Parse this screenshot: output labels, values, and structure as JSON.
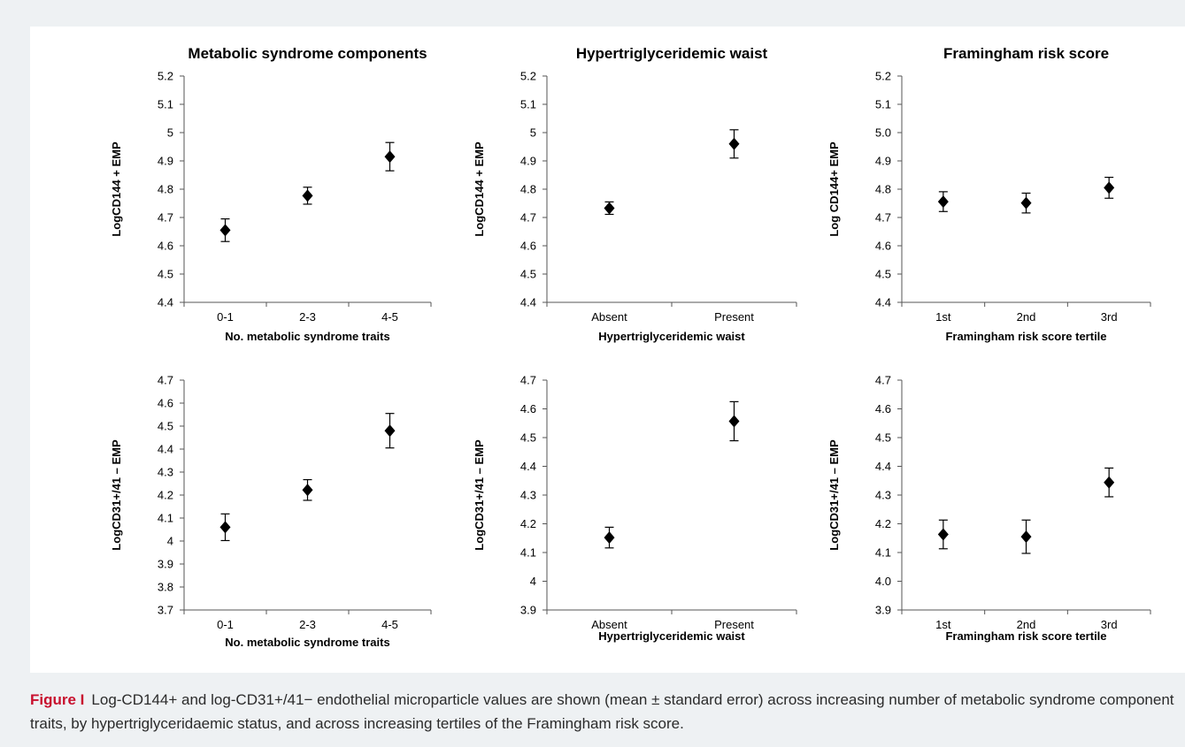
{
  "chart_data": [
    {
      "type": "scatter",
      "title": "Metabolic syndrome components",
      "xlabel": "No. metabolic syndrome traits",
      "ylabel": "LogCD144 + EMP",
      "categories": [
        "0-1",
        "2-3",
        "4-5"
      ],
      "values": [
        4.655,
        4.777,
        4.915
      ],
      "error": [
        0.04,
        0.03,
        0.05
      ],
      "ylim": [
        4.4,
        5.2
      ],
      "yticks": [
        "4.4",
        "4.5",
        "4.6",
        "4.7",
        "4.8",
        "4.9",
        "5",
        "5.1",
        "5.2"
      ],
      "grid": false
    },
    {
      "type": "scatter",
      "title": "Hypertriglyceridemic waist",
      "xlabel": "Hypertriglyceridemic waist",
      "ylabel": "LogCD144 + EMP",
      "categories": [
        "Absent",
        "Present"
      ],
      "values": [
        4.733,
        4.96
      ],
      "error": [
        0.022,
        0.05
      ],
      "ylim": [
        4.4,
        5.2
      ],
      "yticks": [
        "4.4",
        "4.5",
        "4.6",
        "4.7",
        "4.8",
        "4.9",
        "5",
        "5.1",
        "5.2"
      ],
      "grid": false
    },
    {
      "type": "scatter",
      "title": "Framingham risk score",
      "xlabel": "Framingham risk score tertile",
      "ylabel": "Log CD144+ EMP",
      "categories": [
        "1st",
        "2nd",
        "3rd"
      ],
      "values": [
        4.756,
        4.751,
        4.805
      ],
      "error": [
        0.035,
        0.035,
        0.037
      ],
      "ylim": [
        4.4,
        5.2
      ],
      "yticks": [
        "4.4",
        "4.5",
        "4.6",
        "4.7",
        "4.8",
        "4.9",
        "5.0",
        "5.1",
        "5.2"
      ],
      "grid": false
    },
    {
      "type": "scatter",
      "title": "",
      "xlabel": "No. metabolic syndrome traits",
      "ylabel": "LogCD31+/41 – EMP",
      "categories": [
        "0-1",
        "2-3",
        "4-5"
      ],
      "values": [
        4.06,
        4.222,
        4.48
      ],
      "error": [
        0.058,
        0.045,
        0.075
      ],
      "ylim": [
        3.7,
        4.7
      ],
      "yticks": [
        "3.7",
        "3.8",
        "3.9",
        "4",
        "4.1",
        "4.2",
        "4.3",
        "4.4",
        "4.5",
        "4.6",
        "4.7"
      ],
      "grid": false
    },
    {
      "type": "scatter",
      "title": "",
      "xlabel": "Hypertriglyceridemic waist",
      "ylabel": "LogCD31+/41 – EMP",
      "categories": [
        "Absent",
        "Present"
      ],
      "values": [
        4.152,
        4.557
      ],
      "error": [
        0.036,
        0.068
      ],
      "ylim": [
        3.9,
        4.7
      ],
      "yticks": [
        "3.9",
        "4",
        "4.1",
        "4.2",
        "4.3",
        "4.4",
        "4.5",
        "4.6",
        "4.7"
      ],
      "grid": false
    },
    {
      "type": "scatter",
      "title": "",
      "xlabel": "Framingham risk score tertile",
      "ylabel": "LogCD31+/41 – EMP",
      "categories": [
        "1st",
        "2nd",
        "3rd"
      ],
      "values": [
        4.163,
        4.155,
        4.344
      ],
      "error": [
        0.05,
        0.058,
        0.05
      ],
      "ylim": [
        3.9,
        4.7
      ],
      "yticks": [
        "3.9",
        "4.0",
        "4.1",
        "4.2",
        "4.3",
        "4.4",
        "4.5",
        "4.6",
        "4.7"
      ],
      "grid": false
    }
  ],
  "caption": {
    "label": "Figure I",
    "text": "Log-CD144+ and log-CD31+/41− endothelial microparticle values are shown (mean ± standard error) across increasing number of metabolic syndrome component traits, by hypertriglyceridaemic status, and across increasing tertiles of the Framingham risk score."
  }
}
